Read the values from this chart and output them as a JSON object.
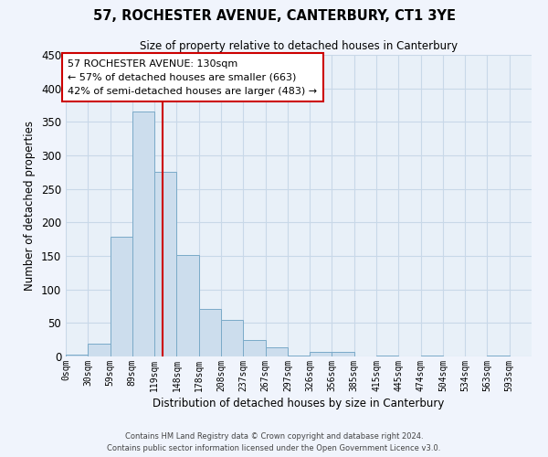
{
  "title": "57, ROCHESTER AVENUE, CANTERBURY, CT1 3YE",
  "subtitle": "Size of property relative to detached houses in Canterbury",
  "xlabel": "Distribution of detached houses by size in Canterbury",
  "ylabel": "Number of detached properties",
  "bar_color": "#ccdded",
  "bar_edge_color": "#7aaac8",
  "bin_labels": [
    "0sqm",
    "30sqm",
    "59sqm",
    "89sqm",
    "119sqm",
    "148sqm",
    "178sqm",
    "208sqm",
    "237sqm",
    "267sqm",
    "297sqm",
    "326sqm",
    "356sqm",
    "385sqm",
    "415sqm",
    "445sqm",
    "474sqm",
    "504sqm",
    "534sqm",
    "563sqm",
    "593sqm"
  ],
  "bar_heights": [
    3,
    19,
    178,
    365,
    275,
    152,
    71,
    55,
    24,
    13,
    2,
    7,
    7,
    0,
    2,
    0,
    1,
    0,
    0,
    1,
    0
  ],
  "annotation_title": "57 ROCHESTER AVENUE: 130sqm",
  "annotation_line1": "← 57% of detached houses are smaller (663)",
  "annotation_line2": "42% of semi-detached houses are larger (483) →",
  "annotation_box_facecolor": "#ffffff",
  "annotation_box_edgecolor": "#cc0000",
  "vline_color": "#cc0000",
  "ylim": [
    0,
    450
  ],
  "yticks": [
    0,
    50,
    100,
    150,
    200,
    250,
    300,
    350,
    400,
    450
  ],
  "grid_color": "#c8d8e8",
  "background_color": "#e8f0f8",
  "fig_facecolor": "#f0f4fc",
  "footer1": "Contains HM Land Registry data © Crown copyright and database right 2024.",
  "footer2": "Contains public sector information licensed under the Open Government Licence v3.0."
}
